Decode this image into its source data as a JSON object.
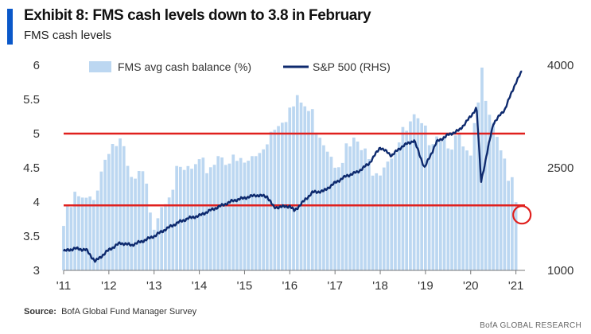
{
  "header": {
    "title": "Exhibit 8: FMS cash levels down to 3.8 in February",
    "subtitle": "FMS cash levels"
  },
  "source": {
    "label": "Source:",
    "text": "BofA Global Fund Manager Survey"
  },
  "footer": {
    "brand": "BofA GLOBAL RESEARCH"
  },
  "colors": {
    "accent": "#0a58c9",
    "bars": "#bcd7f1",
    "line": "#0e2a6e",
    "threshold": "#e0201e"
  },
  "chart_data": {
    "type": "bar+line",
    "x_tick_labels": [
      "'11",
      "'12",
      "'13",
      "'14",
      "'15",
      "'16",
      "'17",
      "'18",
      "'19",
      "'20",
      "'21"
    ],
    "x_range": [
      2011.0,
      2021.2
    ],
    "left_axis": {
      "ticks": [
        "3",
        "3.5",
        "4",
        "4.5",
        "5",
        "5.5",
        "6"
      ],
      "ylim": [
        3,
        6
      ]
    },
    "right_axis": {
      "ticks": [
        "1000",
        "2500",
        "4000"
      ],
      "ylim": [
        1000,
        4000
      ]
    },
    "legend": [
      {
        "name": "FMS avg cash balance (%)",
        "kind": "bar"
      },
      {
        "name": "S&P 500 (RHS)",
        "kind": "line"
      }
    ],
    "reference_lines": [
      5.0,
      3.95
    ],
    "highlight": {
      "x": 2021.08,
      "y": 3.8
    },
    "cash_balance_points": [
      [
        2011.0,
        3.7
      ],
      [
        2011.25,
        4.1
      ],
      [
        2011.5,
        4.0
      ],
      [
        2011.75,
        4.3
      ],
      [
        2012.0,
        4.9
      ],
      [
        2012.25,
        4.9
      ],
      [
        2012.5,
        4.3
      ],
      [
        2012.75,
        4.4
      ],
      [
        2013.0,
        3.8
      ],
      [
        2013.25,
        4.2
      ],
      [
        2013.5,
        4.4
      ],
      [
        2013.75,
        4.5
      ],
      [
        2014.0,
        4.5
      ],
      [
        2014.25,
        4.6
      ],
      [
        2014.5,
        4.8
      ],
      [
        2014.75,
        4.6
      ],
      [
        2015.0,
        4.6
      ],
      [
        2015.25,
        4.7
      ],
      [
        2015.5,
        5.0
      ],
      [
        2015.75,
        5.3
      ],
      [
        2016.0,
        5.4
      ],
      [
        2016.25,
        5.5
      ],
      [
        2016.5,
        5.3
      ],
      [
        2016.75,
        5.0
      ],
      [
        2017.0,
        4.7
      ],
      [
        2017.25,
        4.8
      ],
      [
        2017.5,
        4.9
      ],
      [
        2017.75,
        4.6
      ],
      [
        2018.0,
        4.6
      ],
      [
        2018.25,
        4.8
      ],
      [
        2018.5,
        5.0
      ],
      [
        2018.75,
        5.2
      ],
      [
        2019.0,
        5.0
      ],
      [
        2019.25,
        5.1
      ],
      [
        2019.5,
        5.0
      ],
      [
        2019.75,
        4.9
      ],
      [
        2020.0,
        4.6
      ],
      [
        2020.25,
        5.9
      ],
      [
        2020.5,
        5.3
      ],
      [
        2020.75,
        4.7
      ],
      [
        2021.0,
        4.0
      ],
      [
        2021.08,
        3.8
      ]
    ],
    "sp500_points": [
      [
        2011.0,
        1280
      ],
      [
        2011.25,
        1320
      ],
      [
        2011.5,
        1300
      ],
      [
        2011.7,
        1130
      ],
      [
        2012.0,
        1300
      ],
      [
        2012.25,
        1400
      ],
      [
        2012.5,
        1370
      ],
      [
        2012.75,
        1430
      ],
      [
        2013.0,
        1500
      ],
      [
        2013.25,
        1600
      ],
      [
        2013.5,
        1690
      ],
      [
        2013.75,
        1760
      ],
      [
        2014.0,
        1800
      ],
      [
        2014.25,
        1880
      ],
      [
        2014.5,
        1950
      ],
      [
        2014.75,
        2020
      ],
      [
        2015.0,
        2060
      ],
      [
        2015.25,
        2100
      ],
      [
        2015.5,
        2080
      ],
      [
        2015.65,
        1920
      ],
      [
        2016.0,
        1940
      ],
      [
        2016.1,
        1870
      ],
      [
        2016.5,
        2140
      ],
      [
        2016.75,
        2160
      ],
      [
        2017.0,
        2280
      ],
      [
        2017.25,
        2380
      ],
      [
        2017.5,
        2440
      ],
      [
        2017.75,
        2560
      ],
      [
        2018.0,
        2800
      ],
      [
        2018.25,
        2680
      ],
      [
        2018.5,
        2820
      ],
      [
        2018.75,
        2900
      ],
      [
        2018.98,
        2500
      ],
      [
        2019.25,
        2880
      ],
      [
        2019.5,
        2980
      ],
      [
        2019.75,
        3050
      ],
      [
        2020.0,
        3250
      ],
      [
        2020.13,
        3380
      ],
      [
        2020.23,
        2300
      ],
      [
        2020.5,
        3150
      ],
      [
        2020.75,
        3350
      ],
      [
        2021.0,
        3750
      ],
      [
        2021.15,
        3930
      ]
    ]
  }
}
